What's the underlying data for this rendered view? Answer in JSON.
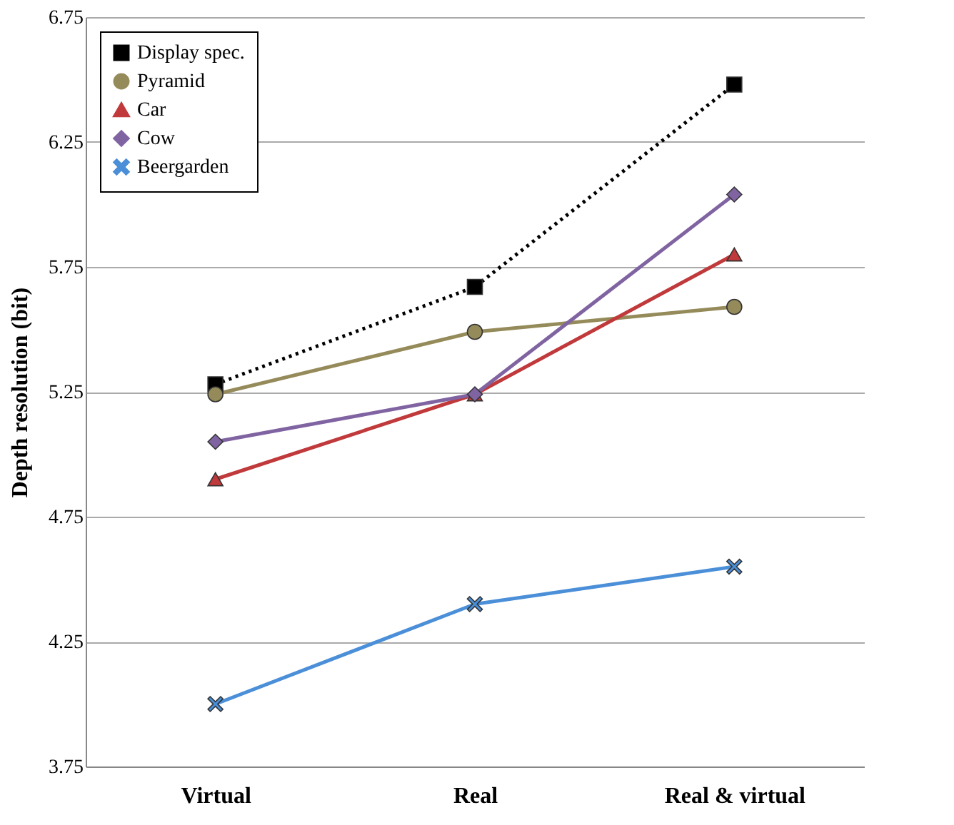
{
  "chart_data": {
    "type": "line",
    "ylabel": "Depth resolution (bit)",
    "categories": [
      "Virtual",
      "Real",
      "Real & virtual"
    ],
    "ylim": [
      3.75,
      6.75
    ],
    "yticks": [
      3.75,
      4.25,
      4.75,
      5.25,
      5.75,
      6.25,
      6.75
    ],
    "grid": "y",
    "legend": "top left",
    "series": [
      {
        "name": "Display spec.",
        "color": "#000000",
        "marker": "square",
        "line_style": "dotted",
        "values": [
          5.28,
          5.67,
          6.48
        ]
      },
      {
        "name": "Pyramid",
        "color": "#958b5a",
        "marker": "circle",
        "line_style": "solid",
        "values": [
          5.24,
          5.49,
          5.59
        ]
      },
      {
        "name": "Car",
        "color": "#c0393b",
        "marker": "triangle",
        "line_style": "solid",
        "values": [
          4.9,
          5.24,
          5.8
        ]
      },
      {
        "name": "Cow",
        "color": "#8064a2",
        "marker": "diamond",
        "line_style": "solid",
        "values": [
          5.05,
          5.24,
          6.04
        ]
      },
      {
        "name": "Beergarden",
        "color": "#4a8fd8",
        "marker": "cross",
        "line_style": "solid",
        "values": [
          4.0,
          4.4,
          4.55
        ]
      }
    ]
  }
}
